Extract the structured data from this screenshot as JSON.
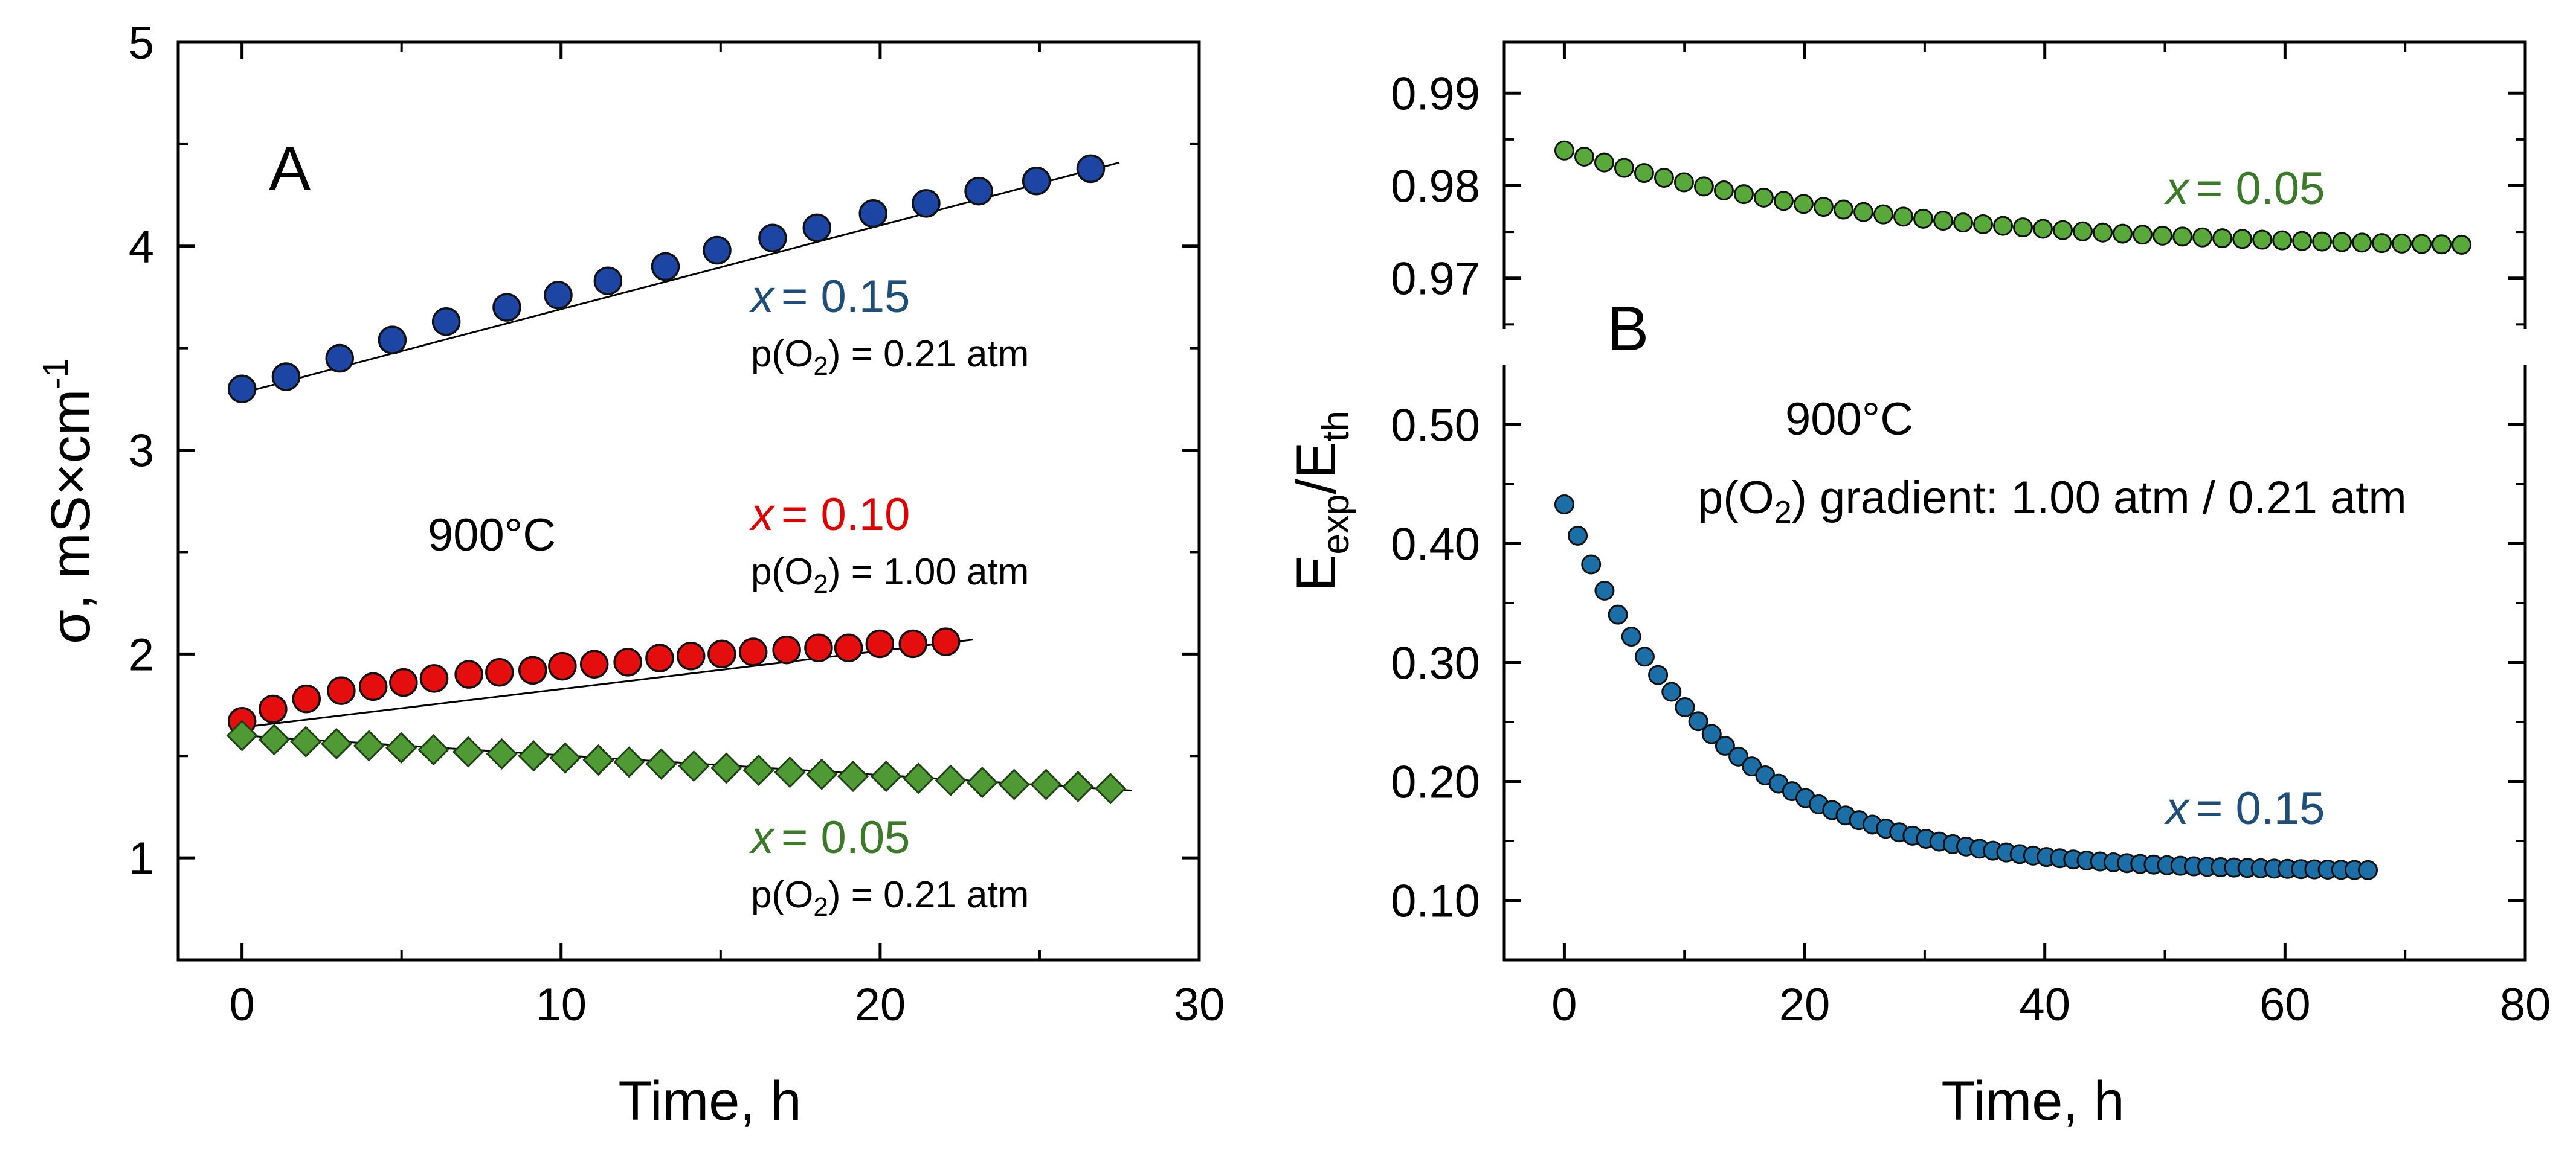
{
  "chart_data": [
    {
      "panel": "A",
      "type": "scatter",
      "panel_label": "A",
      "xlabel": "Time, h",
      "ylabel": "σ, mS×cm",
      "ylabel_sup": "-1",
      "xlim": [
        -2,
        30
      ],
      "ylim": [
        0.5,
        5
      ],
      "xticks": [
        0,
        10,
        20,
        30
      ],
      "xtick_labels": [
        "0",
        "10",
        "20",
        "30"
      ],
      "yticks": [
        1,
        2,
        3,
        4,
        5
      ],
      "ytick_labels": [
        "1",
        "2",
        "3",
        "4",
        "5"
      ],
      "temperature": "900°C",
      "series": [
        {
          "name": "x = 0.15",
          "var": "x",
          "label_value": "= 0.15",
          "condition": "p(O2) = 0.21 atm",
          "marker": "circle",
          "color": "#1d45a4",
          "text_color": "#1f4e79",
          "fit": [
            [
              0,
              3.28
            ],
            [
              27.5,
              4.41
            ]
          ],
          "x": [
            0,
            1.38,
            3.06,
            4.71,
            6.4,
            8.3,
            9.91,
            11.47,
            13.27,
            14.89,
            16.63,
            18.02,
            19.78,
            21.44,
            23.09,
            24.9,
            26.6
          ],
          "y": [
            3.3,
            3.36,
            3.45,
            3.54,
            3.63,
            3.7,
            3.76,
            3.83,
            3.9,
            3.98,
            4.04,
            4.09,
            4.16,
            4.21,
            4.27,
            4.32,
            4.38
          ]
        },
        {
          "name": "x = 0.10",
          "var": "x",
          "label_value": "= 0.10",
          "condition": "p(O2) = 1.00 atm",
          "marker": "circle",
          "color": "#e40e0e",
          "text_color": "#e00000",
          "fit": [
            [
              0,
              1.64
            ],
            [
              22.9,
              2.07
            ]
          ],
          "x": [
            0,
            0.97,
            2.02,
            3.11,
            4.11,
            5.06,
            6.02,
            7.11,
            8.07,
            9.11,
            10.04,
            11.04,
            12.09,
            13.09,
            14.07,
            15.04,
            16.02,
            17.07,
            18.07,
            19.01,
            19.99,
            21.03,
            22.06
          ],
          "y": [
            1.67,
            1.73,
            1.78,
            1.82,
            1.84,
            1.86,
            1.88,
            1.9,
            1.91,
            1.92,
            1.94,
            1.95,
            1.96,
            1.98,
            1.99,
            2.0,
            2.01,
            2.02,
            2.03,
            2.03,
            2.05,
            2.05,
            2.06
          ]
        },
        {
          "name": "x = 0.05",
          "var": "x",
          "label_value": "= 0.05",
          "condition": "p(O2) = 0.21 atm",
          "marker": "diamond",
          "color": "#4f9a35",
          "text_color": "#3a7a28",
          "fit": [
            [
              0,
              1.6
            ],
            [
              27.9,
              1.33
            ]
          ],
          "x": [
            0,
            1.01,
            2,
            2.96,
            3.98,
            4.99,
            6,
            7.09,
            8.14,
            9.14,
            10.13,
            11.17,
            12.13,
            13.14,
            14.16,
            15.18,
            16.19,
            17.17,
            18.17,
            19.15,
            20.19,
            21.2,
            22.21,
            23.2,
            24.2,
            25.2,
            26.2,
            27.22
          ],
          "y": [
            1.6,
            1.58,
            1.57,
            1.56,
            1.55,
            1.54,
            1.53,
            1.52,
            1.51,
            1.5,
            1.49,
            1.48,
            1.47,
            1.46,
            1.45,
            1.44,
            1.43,
            1.42,
            1.41,
            1.4,
            1.4,
            1.39,
            1.38,
            1.37,
            1.36,
            1.36,
            1.35,
            1.34
          ]
        }
      ]
    },
    {
      "panel": "B",
      "type": "scatter",
      "panel_label": "B",
      "xlabel": "Time, h",
      "ylabel_parts": [
        "E",
        "exp",
        "/E",
        "th"
      ],
      "xlim": [
        -5,
        80
      ],
      "xticks": [
        0,
        20,
        40,
        60,
        80
      ],
      "xtick_labels": [
        "0",
        "20",
        "40",
        "60",
        "80"
      ],
      "top": {
        "ylim": [
          0.9645,
          0.9955
        ],
        "yticks": [
          0.97,
          0.98,
          0.99
        ],
        "ytick_labels": [
          "0.97",
          "0.98",
          "0.99"
        ]
      },
      "bottom": {
        "ylim": [
          0.05,
          0.55
        ],
        "yticks": [
          0.1,
          0.2,
          0.3,
          0.4,
          0.5
        ],
        "ytick_labels": [
          "0.10",
          "0.20",
          "0.30",
          "0.40",
          "0.50"
        ]
      },
      "temperature": "900°C",
      "gradient": "p(O2) gradient: 1.00 atm / 0.21 atm",
      "series": [
        {
          "name": "x = 0.05",
          "var": "x",
          "label_value": "= 0.05",
          "axis": "top",
          "marker": "circle",
          "color": "#58a93a",
          "text_color": "#3a7a28",
          "x_start": 0,
          "x_step": 1.66,
          "count": 46,
          "y_end": 0.973,
          "y_amplitude": 0.0108,
          "y_tau": 26
        },
        {
          "name": "x = 0.15",
          "var": "x",
          "label_value": "= 0.15",
          "axis": "bottom",
          "marker": "circle",
          "color": "#1b6fa6",
          "text_color": "#1f4e79",
          "x_start": 0,
          "x_step": 1.115,
          "count": 61,
          "y_end": 0.124,
          "y_amplitude": 0.309,
          "y_tau": 12.5
        }
      ]
    }
  ]
}
